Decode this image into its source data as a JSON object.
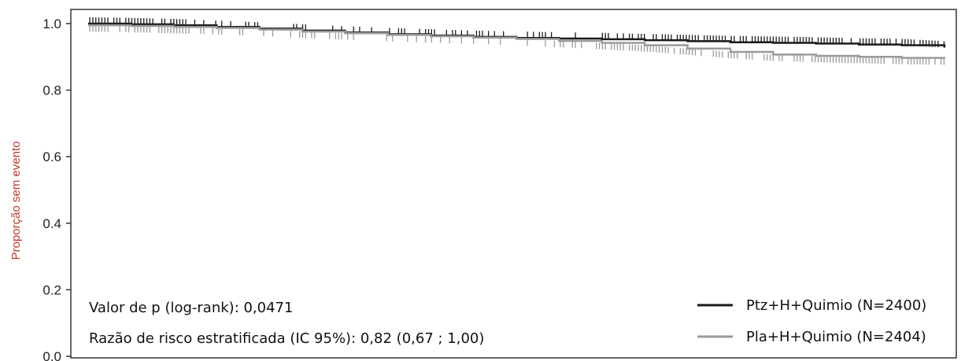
{
  "chart_data": {
    "type": "line",
    "title": "",
    "xlabel": "",
    "ylabel": "Proporção sem evento",
    "ylim": [
      0.0,
      1.0
    ],
    "yticks": [
      "0.0",
      "0.2",
      "0.4",
      "0.6",
      "0.8",
      "1.0"
    ],
    "grid": false,
    "legend_position": "bottom-right",
    "annotations": [
      "Valor de p (log-rank): 0,0471",
      "Razão de risco estratificada (IC 95%): 0,82 (0,67 ; 1,00)"
    ],
    "series": [
      {
        "name": "Ptz+H+Quimio (N=2400)",
        "color": "#1a1a1a",
        "x": [
          0,
          5,
          10,
          15,
          20,
          25,
          30,
          35,
          40,
          45,
          50,
          55,
          60,
          65,
          70,
          75,
          80,
          85,
          90,
          95,
          100
        ],
        "y": [
          1.0,
          0.998,
          0.995,
          0.99,
          0.985,
          0.979,
          0.973,
          0.968,
          0.964,
          0.96,
          0.957,
          0.955,
          0.953,
          0.95,
          0.947,
          0.944,
          0.942,
          0.94,
          0.937,
          0.935,
          0.928
        ]
      },
      {
        "name": "Pla+H+Quimio (N=2404)",
        "color": "#9a9a9a",
        "x": [
          0,
          5,
          10,
          15,
          20,
          25,
          30,
          35,
          40,
          45,
          50,
          55,
          60,
          65,
          70,
          75,
          80,
          85,
          90,
          95,
          100
        ],
        "y": [
          0.995,
          0.993,
          0.99,
          0.987,
          0.982,
          0.976,
          0.971,
          0.966,
          0.962,
          0.958,
          0.954,
          0.948,
          0.942,
          0.935,
          0.925,
          0.915,
          0.907,
          0.903,
          0.9,
          0.897,
          0.895
        ]
      }
    ]
  }
}
